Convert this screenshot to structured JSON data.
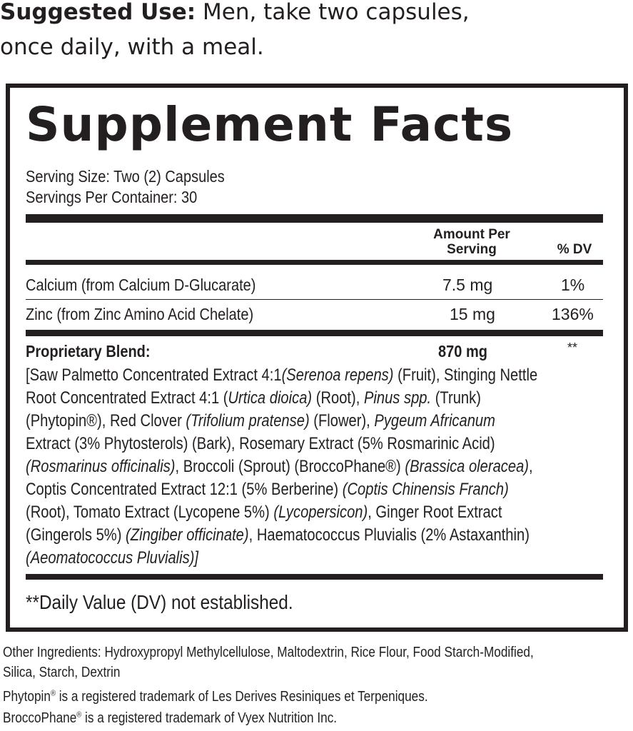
{
  "suggested_use": {
    "label": "Suggested Use:",
    "line1": " Men, take two capsules,",
    "line2": "once daily, with a meal."
  },
  "facts": {
    "title": "Supplement Facts",
    "serving_size": "Serving Size: Two (2) Capsules",
    "servings_per_container": "Servings Per Container: 30",
    "col_amount_line1": "Amount Per",
    "col_amount_line2": "Serving",
    "col_dv": "% DV",
    "rows": [
      {
        "name": "Calcium (from Calcium D-Glucarate)",
        "amount": "7.5 mg",
        "dv": "1%"
      },
      {
        "name": "Zinc (from Zinc Amino Acid Chelate)",
        "amount": "15 mg",
        "dv": "136%"
      }
    ],
    "blend": {
      "name": "Proprietary Blend:",
      "amount": "870 mg",
      "dv": "**",
      "lines": [
        [
          {
            "t": "[Saw Palmetto Concentrated Extract 4:1"
          },
          {
            "t": "(Serenoa repens)",
            "i": true
          },
          {
            "t": " (Fruit), Stinging Nettle"
          }
        ],
        [
          {
            "t": "Root Concentrated Extract 4:1 ("
          },
          {
            "t": "Urtica dioica)",
            "i": true
          },
          {
            "t": " (Root), "
          },
          {
            "t": "Pinus spp.",
            "i": true
          },
          {
            "t": " (Trunk)"
          }
        ],
        [
          {
            "t": "(Phytopin®), Red Clover "
          },
          {
            "t": "(Trifolium pratense)",
            "i": true
          },
          {
            "t": " (Flower), "
          },
          {
            "t": "Pygeum Africanum",
            "i": true
          }
        ],
        [
          {
            "t": "Extract (3% Phytosterols) (Bark), Rosemary Extract (5% Rosmarinic Acid)"
          }
        ],
        [
          {
            "t": "(Rosmarinus officinalis)",
            "i": true
          },
          {
            "t": ", Broccoli (Sprout) (BroccoPhane®) "
          },
          {
            "t": "(Brassica oleracea)",
            "i": true
          },
          {
            "t": ","
          }
        ],
        [
          {
            "t": "Coptis Concentrated Extract 12:1 (5% Berberine) "
          },
          {
            "t": "(Coptis Chinensis Franch)",
            "i": true
          }
        ],
        [
          {
            "t": "(Root), Tomato Extract (Lycopene 5%) "
          },
          {
            "t": "(Lycopersicon)",
            "i": true
          },
          {
            "t": ", Ginger Root Extract"
          }
        ],
        [
          {
            "t": "(Gingerols 5%) "
          },
          {
            "t": "(Zingiber officinate)",
            "i": true
          },
          {
            "t": ", Haematococcus Pluvialis (2% Astaxanthin)"
          }
        ],
        [
          {
            "t": "(Aeomatococcus Pluvialis)]",
            "i": true
          }
        ]
      ]
    },
    "footnote": "**Daily Value (DV) not established."
  },
  "other_ingredients": {
    "line1": "Other Ingredients: Hydroxypropyl Methylcellulose, Maltodextrin, Rice Flour, Food Starch-Modified,",
    "line2": "Silica, Starch, Dextrin"
  },
  "trademarks": [
    {
      "name": "Phytopin",
      "mark": "®",
      "text": " is a  registered trademark of Les Derives Resiniques et Terpeniques."
    },
    {
      "name": "BroccoPhane",
      "mark": "®",
      "text": " is a registered trademark of Vyex Nutrition Inc."
    }
  ]
}
